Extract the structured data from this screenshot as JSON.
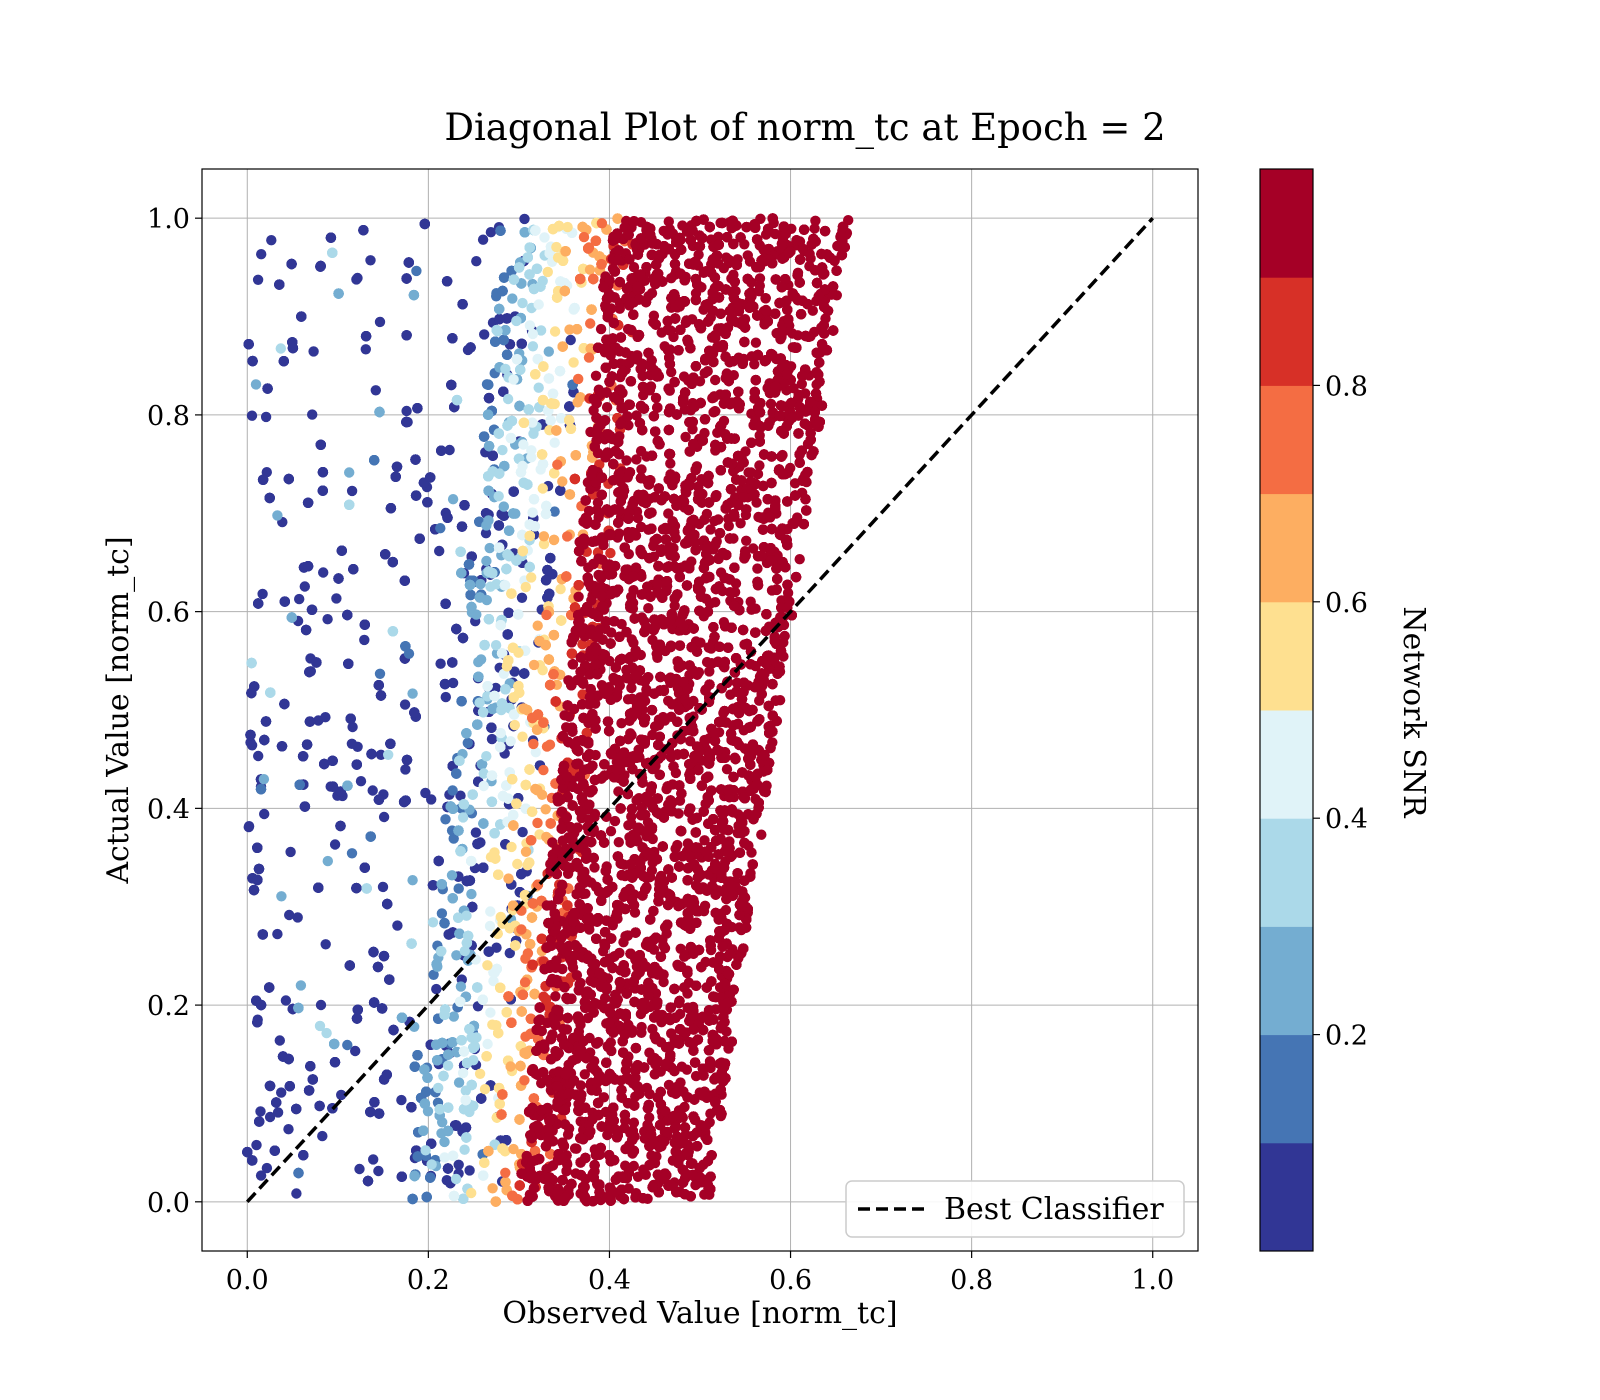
{
  "chart_data": {
    "type": "scatter",
    "title": "Diagonal Plot of norm_tc at Epoch = 2",
    "xlabel": "Observed Value [norm_tc]",
    "ylabel": "Actual Value [norm_tc]",
    "xlim": [
      -0.05,
      1.05
    ],
    "ylim": [
      -0.05,
      1.05
    ],
    "xticks": [
      "0.0",
      "0.2",
      "0.4",
      "0.6",
      "0.8",
      "1.0"
    ],
    "yticks": [
      "0.0",
      "0.2",
      "0.4",
      "0.6",
      "0.8",
      "1.0"
    ],
    "grid": true,
    "legend": {
      "position": "bottom-right",
      "entries": [
        "Best Classifier"
      ]
    },
    "reference_line": {
      "name": "Best Classifier",
      "style": "dashed",
      "color": "#000000",
      "x": [
        0,
        1
      ],
      "y": [
        0,
        1
      ]
    },
    "colorbar": {
      "label": "Network SNR",
      "range": [
        0,
        1
      ],
      "ticks": [
        "0.2",
        "0.4",
        "0.6",
        "0.8"
      ],
      "colors": [
        "#313695",
        "#4575b4",
        "#74add1",
        "#abd9e9",
        "#e0f3f8",
        "#fee090",
        "#fdae61",
        "#f46d43",
        "#d73027",
        "#a50026"
      ]
    },
    "points_summary": {
      "color_by": "Network SNR",
      "trend": "observed value rises with actual value; high-SNR points cluster in a dense band from x≈0.30–0.51 at y=0 to x≈0.40–0.66 at y=1; low-SNR points scatter across x≈0.0–0.35"
    }
  }
}
